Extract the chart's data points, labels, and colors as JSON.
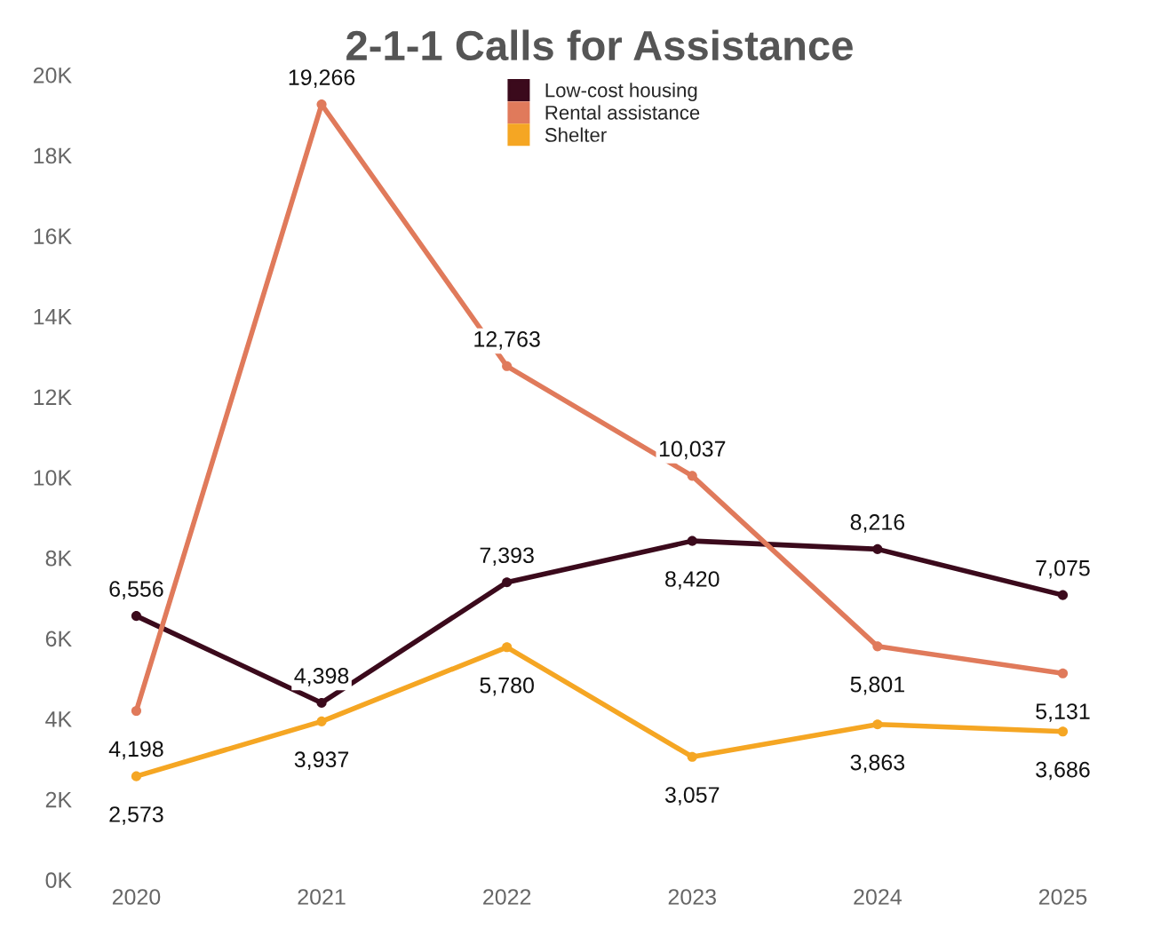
{
  "chart_data": {
    "type": "line",
    "title": "2-1-1 Calls for Assistance",
    "categories": [
      "2020",
      "2021",
      "2022",
      "2023",
      "2024",
      "2025"
    ],
    "series": [
      {
        "name": "Low-cost housing",
        "color": "#3b0a1c",
        "values": [
          6556,
          4398,
          7393,
          8420,
          8216,
          7075
        ],
        "value_labels": [
          "6,556",
          "4,398",
          "7,393",
          "8,420",
          "8,216",
          "7,075"
        ]
      },
      {
        "name": "Rental assistance",
        "color": "#e07a5b",
        "values": [
          4198,
          19266,
          12763,
          10037,
          5801,
          5131
        ],
        "value_labels": [
          "4,198",
          "19,266",
          "12,763",
          "10,037",
          "5,801",
          "5,131"
        ]
      },
      {
        "name": "Shelter",
        "color": "#f5a623",
        "values": [
          2573,
          3937,
          5780,
          3057,
          3863,
          3686
        ],
        "value_labels": [
          "2,573",
          "3,937",
          "5,780",
          "3,057",
          "3,863",
          "3,686"
        ]
      }
    ],
    "ylim": [
      0,
      20000
    ],
    "yticks": [
      {
        "value": 0,
        "label": "0K"
      },
      {
        "value": 2000,
        "label": "2K"
      },
      {
        "value": 4000,
        "label": "4K"
      },
      {
        "value": 6000,
        "label": "6K"
      },
      {
        "value": 8000,
        "label": "8K"
      },
      {
        "value": 10000,
        "label": "10K"
      },
      {
        "value": 12000,
        "label": "12K"
      },
      {
        "value": 14000,
        "label": "14K"
      },
      {
        "value": 16000,
        "label": "16K"
      },
      {
        "value": 18000,
        "label": "18K"
      },
      {
        "value": 20000,
        "label": "20K"
      }
    ],
    "grid": false,
    "legend": "top",
    "marker": "circle",
    "line_style": "solid"
  }
}
